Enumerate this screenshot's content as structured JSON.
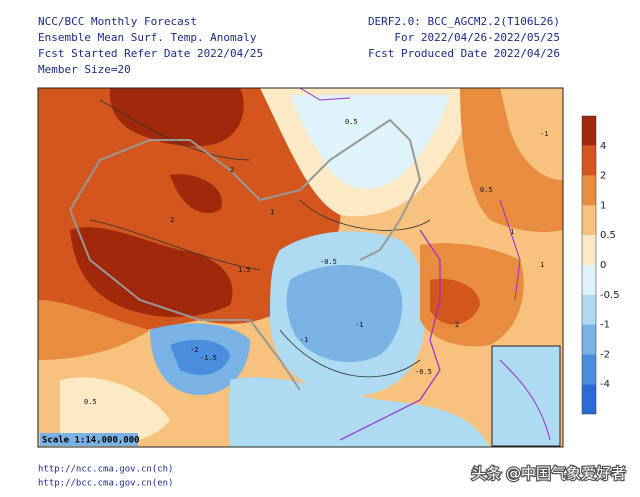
{
  "header": {
    "left": [
      "NCC/BCC Monthly Forecast",
      "Ensemble Mean Surf. Temp. Anomaly",
      "Fcst Started Refer Date 2022/04/25",
      "Member Size=20"
    ],
    "right": [
      "DERF2.0: BCC_AGCM2.2(T106L26)",
      "For 2022/04/26-2022/05/25",
      "Fcst Produced Date 2022/04/26"
    ]
  },
  "map": {
    "scale": "Scale 1:14,000,000",
    "contour_labels": [
      "2",
      "2",
      "1",
      "1",
      "0.5",
      "0.5",
      "-0.5",
      "-1",
      "-1",
      "-1.5",
      "1.5",
      "-2",
      "2",
      "1",
      "-0.5",
      "0.5",
      "-1"
    ]
  },
  "legend": {
    "ticks": [
      4,
      2,
      1,
      0.5,
      0,
      -0.5,
      -1,
      -2,
      -4
    ],
    "colors": [
      "#a1290b",
      "#d2561d",
      "#e88c3f",
      "#f6c27e",
      "#fce9c6",
      "#dff3fb",
      "#aedbf2",
      "#79b3e6",
      "#4a8ddd",
      "#2a6bd5"
    ]
  },
  "footer": {
    "links": [
      "http://ncc.cma.gov.cn(ch)",
      "http://bcc.cma.gov.cn(en)"
    ],
    "watermark": "头条 @中国气象爱好者"
  }
}
